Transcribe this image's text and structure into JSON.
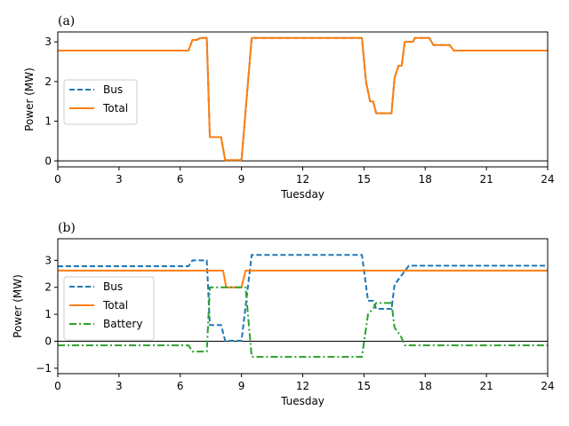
{
  "chart_data": [
    {
      "type": "line",
      "panel_label": "(a)",
      "xlabel": "Tuesday",
      "ylabel": "Power (MW)",
      "xlim": [
        0,
        24
      ],
      "ylim": [
        -0.15,
        3.25
      ],
      "xticks": [
        0,
        3,
        6,
        9,
        12,
        15,
        18,
        21,
        24
      ],
      "yticks": [
        0,
        1,
        2,
        3
      ],
      "zero_line": true,
      "legend": {
        "placement": "center-left",
        "entries": [
          "Bus",
          "Total"
        ]
      },
      "series": [
        {
          "name": "Bus",
          "color": "#1f77b4",
          "style": "dashed",
          "points": [
            [
              0,
              2.78
            ],
            [
              6.4,
              2.78
            ],
            [
              6.6,
              3.05
            ],
            [
              6.8,
              3.05
            ],
            [
              7.0,
              3.1
            ],
            [
              7.3,
              3.1
            ],
            [
              7.45,
              0.6
            ],
            [
              8.0,
              0.6
            ],
            [
              8.2,
              0.02
            ],
            [
              9.0,
              0.02
            ],
            [
              9.5,
              3.1
            ],
            [
              14.9,
              3.1
            ],
            [
              15.1,
              2.0
            ],
            [
              15.3,
              1.5
            ],
            [
              15.45,
              1.5
            ],
            [
              15.6,
              1.2
            ],
            [
              16.35,
              1.2
            ],
            [
              16.5,
              2.1
            ],
            [
              16.7,
              2.4
            ],
            [
              16.85,
              2.4
            ],
            [
              17.0,
              3.0
            ],
            [
              17.4,
              3.0
            ],
            [
              17.5,
              3.1
            ],
            [
              18.2,
              3.1
            ],
            [
              18.4,
              2.92
            ],
            [
              19.2,
              2.92
            ],
            [
              19.4,
              2.78
            ],
            [
              24,
              2.78
            ]
          ]
        },
        {
          "name": "Total",
          "color": "#ff7f0e",
          "style": "solid",
          "points": [
            [
              0,
              2.78
            ],
            [
              6.4,
              2.78
            ],
            [
              6.6,
              3.05
            ],
            [
              6.8,
              3.05
            ],
            [
              7.0,
              3.1
            ],
            [
              7.3,
              3.1
            ],
            [
              7.45,
              0.6
            ],
            [
              8.0,
              0.6
            ],
            [
              8.2,
              0.02
            ],
            [
              9.0,
              0.02
            ],
            [
              9.5,
              3.1
            ],
            [
              14.9,
              3.1
            ],
            [
              15.1,
              2.0
            ],
            [
              15.3,
              1.5
            ],
            [
              15.45,
              1.5
            ],
            [
              15.6,
              1.2
            ],
            [
              16.35,
              1.2
            ],
            [
              16.5,
              2.1
            ],
            [
              16.7,
              2.4
            ],
            [
              16.85,
              2.4
            ],
            [
              17.0,
              3.0
            ],
            [
              17.4,
              3.0
            ],
            [
              17.5,
              3.1
            ],
            [
              18.2,
              3.1
            ],
            [
              18.4,
              2.92
            ],
            [
              19.2,
              2.92
            ],
            [
              19.4,
              2.78
            ],
            [
              24,
              2.78
            ]
          ]
        }
      ]
    },
    {
      "type": "line",
      "panel_label": "(b)",
      "xlabel": "Tuesday",
      "ylabel": "Power (MW)",
      "xlim": [
        0,
        24
      ],
      "ylim": [
        -1.2,
        3.8
      ],
      "xticks": [
        0,
        3,
        6,
        9,
        12,
        15,
        18,
        21,
        24
      ],
      "yticks": [
        -1,
        0,
        1,
        2,
        3
      ],
      "zero_line": true,
      "legend": {
        "placement": "center-left",
        "entries": [
          "Bus",
          "Total",
          "Battery"
        ]
      },
      "series": [
        {
          "name": "Bus",
          "color": "#1f77b4",
          "style": "dashed",
          "points": [
            [
              0,
              2.78
            ],
            [
              6.4,
              2.78
            ],
            [
              6.6,
              3.0
            ],
            [
              7.3,
              3.0
            ],
            [
              7.45,
              0.6
            ],
            [
              8.0,
              0.6
            ],
            [
              8.2,
              0.02
            ],
            [
              9.0,
              0.02
            ],
            [
              9.5,
              3.2
            ],
            [
              14.9,
              3.2
            ],
            [
              15.2,
              1.5
            ],
            [
              15.45,
              1.5
            ],
            [
              15.6,
              1.2
            ],
            [
              16.35,
              1.2
            ],
            [
              16.5,
              2.1
            ],
            [
              16.7,
              2.3
            ],
            [
              17.0,
              2.6
            ],
            [
              17.2,
              2.8
            ],
            [
              24,
              2.8
            ]
          ]
        },
        {
          "name": "Total",
          "color": "#ff7f0e",
          "style": "solid",
          "points": [
            [
              0,
              2.62
            ],
            [
              8.1,
              2.62
            ],
            [
              8.25,
              2.0
            ],
            [
              9.0,
              2.0
            ],
            [
              9.2,
              2.62
            ],
            [
              24,
              2.62
            ]
          ]
        },
        {
          "name": "Battery",
          "color": "#2ca02c",
          "style": "dashdot",
          "points": [
            [
              0,
              -0.15
            ],
            [
              6.4,
              -0.15
            ],
            [
              6.6,
              -0.38
            ],
            [
              7.3,
              -0.38
            ],
            [
              7.45,
              2.0
            ],
            [
              9.2,
              2.0
            ],
            [
              9.5,
              -0.58
            ],
            [
              14.9,
              -0.58
            ],
            [
              15.2,
              1.0
            ],
            [
              15.45,
              1.2
            ],
            [
              15.6,
              1.42
            ],
            [
              16.35,
              1.42
            ],
            [
              16.5,
              0.5
            ],
            [
              16.8,
              0.2
            ],
            [
              17.0,
              -0.15
            ],
            [
              24,
              -0.15
            ]
          ]
        }
      ]
    }
  ]
}
